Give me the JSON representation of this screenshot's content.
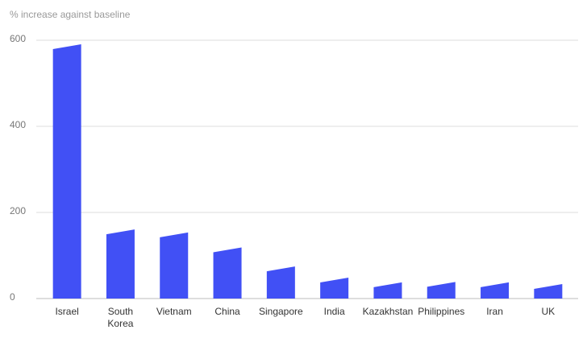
{
  "chart_data": {
    "type": "bar",
    "title": "% increase against baseline",
    "categories": [
      "Israel",
      "South Korea",
      "Vietnam",
      "China",
      "Singapore",
      "India",
      "Kazakhstan",
      "Philippines",
      "Iran",
      "UK"
    ],
    "values": [
      585,
      155,
      148,
      113,
      69,
      43,
      32,
      33,
      32,
      28
    ],
    "color": "#4150f5",
    "ylim": [
      0,
      600
    ],
    "yticks": [
      0,
      200,
      400,
      600
    ],
    "grid": true
  }
}
